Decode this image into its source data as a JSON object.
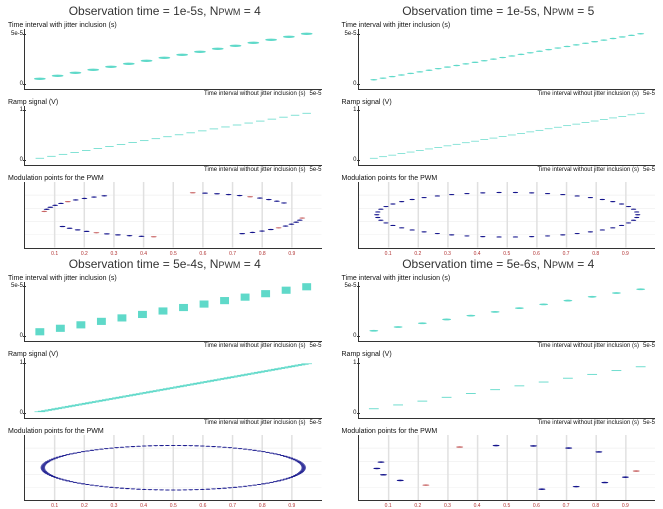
{
  "panels": [
    {
      "title_main": "Observation time = 1e-5s, N",
      "title_sub": "PWM",
      "title_tail": " = 4",
      "sub1": {
        "label": "Time interval with jitter inclusion (s)",
        "ytick": "5e-5",
        "ytick_zero": "0",
        "xlabel": "Time interval without jitter inclusion (s)",
        "xexp": "5e-5",
        "points_n": 16,
        "ymin": 0.1,
        "ymax": 1.0,
        "color": "#5fd9c9",
        "marker": 2,
        "mtype": "dot"
      },
      "sub2": {
        "label": "Ramp signal (V)",
        "ytick": "1",
        "ytick_zero": "0",
        "xlabel": "Time interval without jitter inclusion (s)",
        "xexp": "5e-5",
        "points_n": 24,
        "ymin": 0.05,
        "ymax": 0.95,
        "color": "#5fd9c9",
        "marker": 1.3,
        "mtype": "dash"
      },
      "mod": {
        "label": "Modulation points for the PWM",
        "arcs": 4,
        "density": 10,
        "color": "#14148c",
        "color2": "#c86464",
        "xticks": [
          0.1,
          0.2,
          0.3,
          0.4,
          0.5,
          0.6,
          0.7,
          0.8,
          0.9
        ]
      }
    },
    {
      "title_main": "Observation time = 1e-5s, N",
      "title_sub": "PWM",
      "title_tail": " = 5",
      "sub1": {
        "label": "Time interval with jitter inclusion (s)",
        "ytick": "5e-5",
        "ytick_zero": "0",
        "xlabel": "Time interval without jitter inclusion (s)",
        "xexp": "5e-5",
        "points_n": 30,
        "ymin": 0.08,
        "ymax": 1.0,
        "color": "#5fd9c9",
        "marker": 1.2,
        "mtype": "dot"
      },
      "sub2": {
        "label": "Ramp signal (V)",
        "ytick": "1",
        "ytick_zero": "0",
        "xlabel": "Time interval without jitter inclusion (s)",
        "xexp": "5e-5",
        "points_n": 30,
        "ymin": 0.05,
        "ymax": 0.95,
        "color": "#5fd9c9",
        "marker": 1.2,
        "mtype": "dash"
      },
      "mod": {
        "label": "Modulation points for the PWM",
        "arcs": 1,
        "density": 50,
        "ellipse": true,
        "color": "#14148c",
        "color2": "#c86464",
        "xticks": [
          0.1,
          0.2,
          0.3,
          0.4,
          0.5,
          0.6,
          0.7,
          0.8,
          0.9
        ]
      }
    },
    {
      "title_main": "Observation time = 5e-4s, N",
      "title_sub": "PWM",
      "title_tail": " = 4",
      "sub1": {
        "label": "Time interval with jitter inclusion (s)",
        "ytick": "5e-5",
        "ytick_zero": "0",
        "xlabel": "Time interval without jitter inclusion (s)",
        "xexp": "5e-5",
        "points_n": 14,
        "ymin": 0.1,
        "ymax": 1.0,
        "color": "#5fd9c9",
        "marker": 2.5,
        "mtype": "vbar"
      },
      "sub2": {
        "label": "Ramp signal (V)",
        "ytick": "1",
        "ytick_zero": "0",
        "xlabel": "Time interval without jitter inclusion (s)",
        "xexp": "5e-5",
        "points_n": 80,
        "ymin": 0.02,
        "ymax": 0.98,
        "color": "#5fd9c9",
        "marker": 1.2,
        "mtype": "dash",
        "thick": true
      },
      "mod": {
        "label": "Modulation points for the PWM",
        "arcs": 1,
        "density": 140,
        "ellipse": true,
        "full": true,
        "color": "#14148c",
        "color2": "#c86464",
        "xticks": [
          0.1,
          0.2,
          0.3,
          0.4,
          0.5,
          0.6,
          0.7,
          0.8,
          0.9
        ]
      }
    },
    {
      "title_main": "Observation time = 5e-6s, N",
      "title_sub": "PWM",
      "title_tail": " = 4",
      "sub1": {
        "label": "Time interval with jitter inclusion (s)",
        "ytick": "5e-5",
        "ytick_zero": "0",
        "xlabel": "Time interval without jitter inclusion (s)",
        "xexp": "5e-5",
        "points_n": 12,
        "ymin": 0.12,
        "ymax": 0.95,
        "color": "#5fd9c9",
        "marker": 1.5,
        "mtype": "dot"
      },
      "sub2": {
        "label": "Ramp signal (V)",
        "ytick": "1",
        "ytick_zero": "0",
        "xlabel": "Time interval without jitter inclusion (s)",
        "xexp": "5e-5",
        "points_n": 12,
        "ymin": 0.08,
        "ymax": 0.92,
        "color": "#5fd9c9",
        "marker": 1.5,
        "mtype": "dash"
      },
      "mod": {
        "label": "Modulation points for the PWM",
        "arcs": 3,
        "density": 5,
        "sparse": true,
        "color": "#14148c",
        "color2": "#c86464",
        "xticks": [
          0.1,
          0.2,
          0.3,
          0.4,
          0.5,
          0.6,
          0.7,
          0.8,
          0.9
        ]
      }
    }
  ],
  "colors": {
    "axis": "#333333",
    "tick_text": "#111111",
    "grid": "#e0e0e0"
  }
}
